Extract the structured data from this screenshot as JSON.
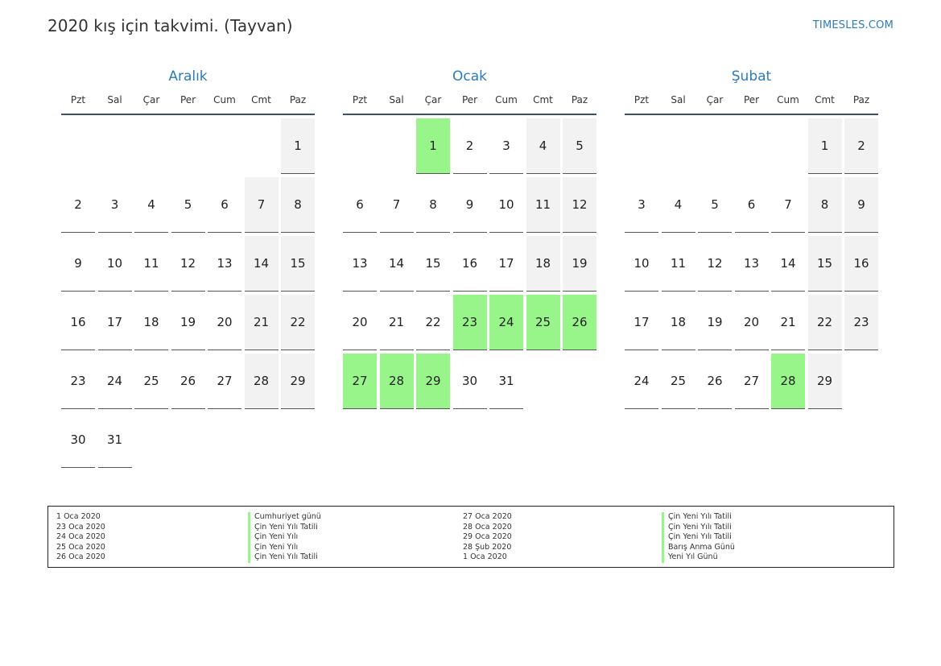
{
  "header": {
    "title": "2020 kış için takvimi. (Tayvan)",
    "site": "TIMESLES.COM"
  },
  "weekdays": [
    "Pzt",
    "Sal",
    "Çar",
    "Per",
    "Cum",
    "Cmt",
    "Paz"
  ],
  "months": [
    {
      "name": "Aralık",
      "offset": 6,
      "days": 31,
      "holidays": []
    },
    {
      "name": "Ocak",
      "offset": 2,
      "days": 31,
      "holidays": [
        1,
        23,
        24,
        25,
        26,
        27,
        28,
        29
      ]
    },
    {
      "name": "Şubat",
      "offset": 5,
      "days": 29,
      "holidays": [
        28
      ]
    }
  ],
  "legend": [
    {
      "date": "1 Oca 2020",
      "name": "Cumhuriyet günü"
    },
    {
      "date": "23 Oca 2020",
      "name": "Çin Yeni Yılı Tatili"
    },
    {
      "date": "24 Oca 2020",
      "name": "Çin Yeni Yılı"
    },
    {
      "date": "25 Oca 2020",
      "name": "Çin Yeni Yılı"
    },
    {
      "date": "26 Oca 2020",
      "name": "Çin Yeni Yılı Tatili"
    },
    {
      "date": "27 Oca 2020",
      "name": "Çin Yeni Yılı Tatili"
    },
    {
      "date": "28 Oca 2020",
      "name": "Çin Yeni Yılı Tatili"
    },
    {
      "date": "29 Oca 2020",
      "name": "Çin Yeni Yılı Tatili"
    },
    {
      "date": "28 Şub 2020",
      "name": "Barış Anma Günü"
    },
    {
      "date": "1 Oca 2020",
      "name": "Yeni Yıl Günü"
    }
  ],
  "colors": {
    "accent": "#2b7bbf",
    "holiday": "#98f58a",
    "weekend": "#f2f2f2",
    "rule": "#3d4f6b"
  }
}
